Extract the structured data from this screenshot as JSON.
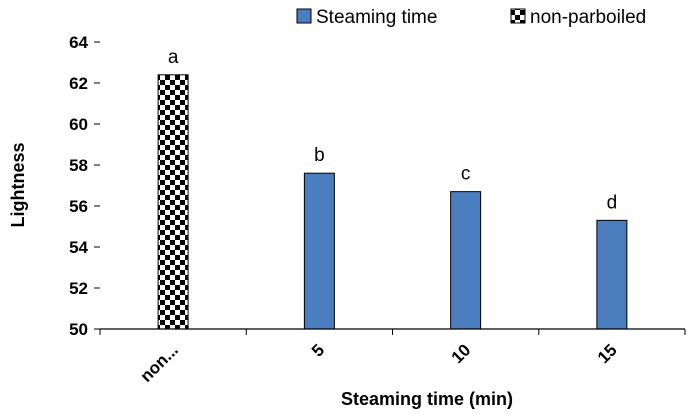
{
  "chart_data": {
    "type": "bar",
    "title": "",
    "xlabel": "Steaming time (min)",
    "ylabel": "Lightness",
    "ylim": [
      50,
      64
    ],
    "ytick_step": 2,
    "categories": [
      "non...",
      "5",
      "10",
      "15"
    ],
    "values": [
      62.4,
      57.6,
      56.7,
      55.3
    ],
    "labels": [
      "a",
      "b",
      "c",
      "d"
    ],
    "bar_series": [
      "non-parboiled",
      "Steaming time",
      "Steaming time",
      "Steaming time"
    ],
    "series": [
      {
        "name": "Steaming time",
        "color": "#4a7ebf",
        "pattern": "solid"
      },
      {
        "name": "non-parboiled",
        "color": "#000000",
        "pattern": "checkerboard"
      }
    ],
    "legend_position": "top-right",
    "grid": false
  }
}
